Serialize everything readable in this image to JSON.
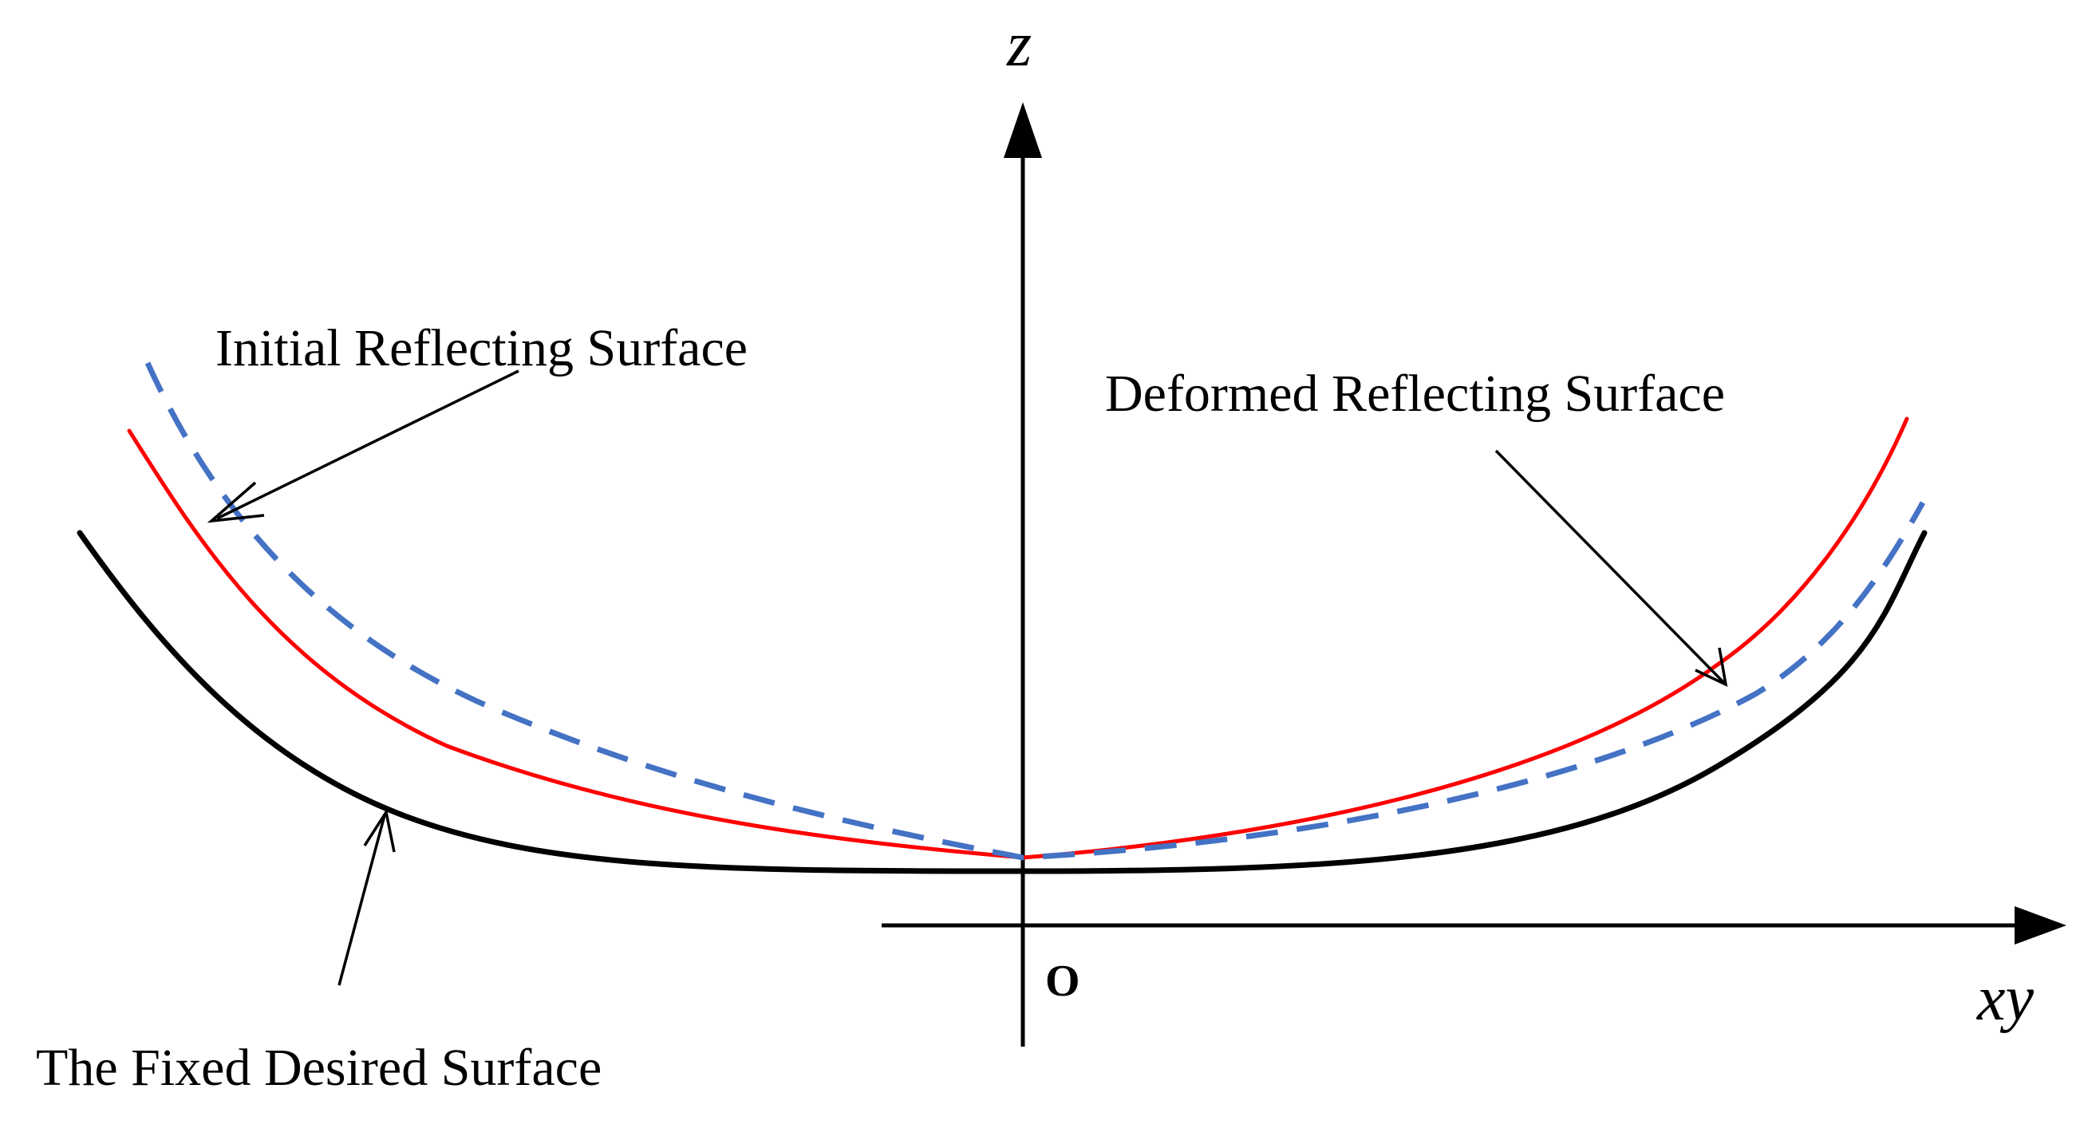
{
  "axes": {
    "vertical_label": "z",
    "horizontal_label": "xy",
    "origin_label": "O"
  },
  "labels": {
    "initial": "Initial Reflecting Surface",
    "deformed": "Deformed Reflecting Surface",
    "desired": "The Fixed Desired Surface"
  },
  "colors": {
    "desired": "#000000",
    "deformed": "#ff0000",
    "initial": "#4472c4"
  },
  "line_styles": {
    "desired": "solid",
    "deformed": "solid",
    "initial": "dashed"
  }
}
